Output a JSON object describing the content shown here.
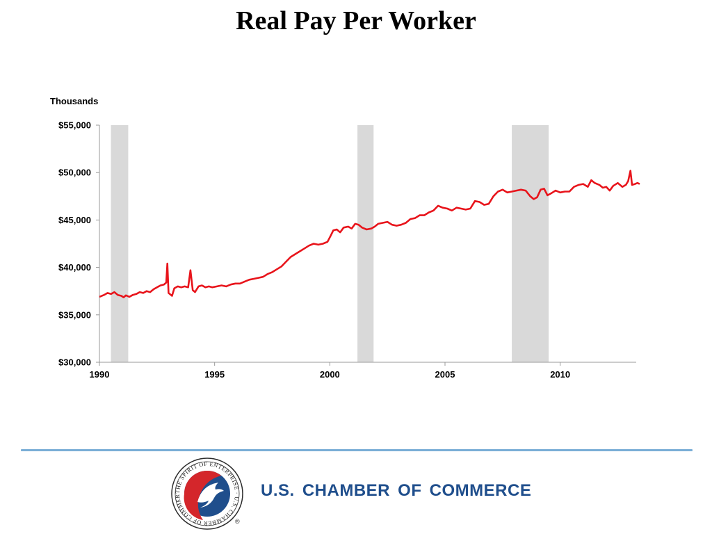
{
  "slide": {
    "title": "Real Pay Per Worker"
  },
  "footer": {
    "org_name": "U.S. CHAMBER OF COMMERCE",
    "seal_text": "THE SPIRIT OF ENTERPRISE · U.S. CHAMBER OF COMMERCE",
    "registered_mark": "®"
  },
  "colors": {
    "line": "#e8141b",
    "recession_band": "#d9d9d9",
    "footer_rule": "#7aaed6",
    "brand_blue": "#1f4e8c",
    "brand_red": "#d4262b"
  },
  "chart_data": {
    "type": "line",
    "title": "Real Pay Per Worker",
    "ylabel": "Thousands",
    "xlabel": "",
    "xlim": [
      1990,
      2013.3
    ],
    "ylim": [
      30000,
      55000
    ],
    "grid": false,
    "legend": "none",
    "x_ticks": [
      {
        "value": 1990,
        "label": "1990"
      },
      {
        "value": 1995,
        "label": "1995"
      },
      {
        "value": 2000,
        "label": "2000"
      },
      {
        "value": 2005,
        "label": "2005"
      },
      {
        "value": 2010,
        "label": "2010"
      }
    ],
    "y_ticks": [
      {
        "value": 30000,
        "label": "$30,000"
      },
      {
        "value": 35000,
        "label": "$35,000"
      },
      {
        "value": 40000,
        "label": "$40,000"
      },
      {
        "value": 45000,
        "label": "$45,000"
      },
      {
        "value": 50000,
        "label": "$50,000"
      },
      {
        "value": 55000,
        "label": "$55,000"
      }
    ],
    "shaded_periods": [
      {
        "start": 1990.5,
        "end": 1991.25
      },
      {
        "start": 2001.2,
        "end": 2001.9
      },
      {
        "start": 2007.9,
        "end": 2009.5
      }
    ],
    "series": [
      {
        "points": [
          [
            1990.0,
            36900
          ],
          [
            1990.2,
            37100
          ],
          [
            1990.35,
            37300
          ],
          [
            1990.5,
            37200
          ],
          [
            1990.65,
            37400
          ],
          [
            1990.8,
            37100
          ],
          [
            1990.95,
            37000
          ],
          [
            1991.05,
            36850
          ],
          [
            1991.15,
            37050
          ],
          [
            1991.3,
            36900
          ],
          [
            1991.45,
            37100
          ],
          [
            1991.6,
            37200
          ],
          [
            1991.75,
            37400
          ],
          [
            1991.9,
            37300
          ],
          [
            1992.05,
            37500
          ],
          [
            1992.2,
            37400
          ],
          [
            1992.35,
            37700
          ],
          [
            1992.5,
            37900
          ],
          [
            1992.65,
            38100
          ],
          [
            1992.8,
            38200
          ],
          [
            1992.9,
            38400
          ],
          [
            1992.95,
            40400
          ],
          [
            1993.0,
            37300
          ],
          [
            1993.15,
            37000
          ],
          [
            1993.25,
            37800
          ],
          [
            1993.4,
            38000
          ],
          [
            1993.55,
            37900
          ],
          [
            1993.7,
            38000
          ],
          [
            1993.85,
            37900
          ],
          [
            1993.95,
            39700
          ],
          [
            1994.05,
            37600
          ],
          [
            1994.15,
            37400
          ],
          [
            1994.3,
            38000
          ],
          [
            1994.45,
            38100
          ],
          [
            1994.6,
            37900
          ],
          [
            1994.75,
            38000
          ],
          [
            1994.9,
            37900
          ],
          [
            1995.1,
            38000
          ],
          [
            1995.3,
            38100
          ],
          [
            1995.5,
            38000
          ],
          [
            1995.7,
            38200
          ],
          [
            1995.9,
            38300
          ],
          [
            1996.1,
            38300
          ],
          [
            1996.3,
            38500
          ],
          [
            1996.5,
            38700
          ],
          [
            1996.7,
            38800
          ],
          [
            1996.9,
            38900
          ],
          [
            1997.1,
            39000
          ],
          [
            1997.3,
            39300
          ],
          [
            1997.5,
            39500
          ],
          [
            1997.7,
            39800
          ],
          [
            1997.9,
            40100
          ],
          [
            1998.1,
            40600
          ],
          [
            1998.3,
            41100
          ],
          [
            1998.5,
            41400
          ],
          [
            1998.7,
            41700
          ],
          [
            1998.9,
            42000
          ],
          [
            1999.1,
            42300
          ],
          [
            1999.3,
            42500
          ],
          [
            1999.5,
            42400
          ],
          [
            1999.7,
            42500
          ],
          [
            1999.9,
            42700
          ],
          [
            2000.05,
            43400
          ],
          [
            2000.15,
            43900
          ],
          [
            2000.3,
            44000
          ],
          [
            2000.45,
            43700
          ],
          [
            2000.6,
            44200
          ],
          [
            2000.8,
            44300
          ],
          [
            2000.95,
            44100
          ],
          [
            2001.1,
            44600
          ],
          [
            2001.25,
            44500
          ],
          [
            2001.4,
            44200
          ],
          [
            2001.6,
            44000
          ],
          [
            2001.8,
            44100
          ],
          [
            2001.95,
            44300
          ],
          [
            2002.1,
            44600
          ],
          [
            2002.3,
            44700
          ],
          [
            2002.5,
            44800
          ],
          [
            2002.7,
            44500
          ],
          [
            2002.9,
            44400
          ],
          [
            2003.1,
            44500
          ],
          [
            2003.3,
            44700
          ],
          [
            2003.5,
            45100
          ],
          [
            2003.7,
            45200
          ],
          [
            2003.9,
            45500
          ],
          [
            2004.1,
            45500
          ],
          [
            2004.3,
            45800
          ],
          [
            2004.5,
            46000
          ],
          [
            2004.7,
            46500
          ],
          [
            2004.9,
            46300
          ],
          [
            2005.1,
            46200
          ],
          [
            2005.3,
            46000
          ],
          [
            2005.5,
            46300
          ],
          [
            2005.7,
            46200
          ],
          [
            2005.9,
            46100
          ],
          [
            2006.1,
            46200
          ],
          [
            2006.3,
            47000
          ],
          [
            2006.5,
            46900
          ],
          [
            2006.7,
            46600
          ],
          [
            2006.9,
            46700
          ],
          [
            2007.1,
            47500
          ],
          [
            2007.3,
            48000
          ],
          [
            2007.5,
            48200
          ],
          [
            2007.7,
            47900
          ],
          [
            2007.9,
            48000
          ],
          [
            2008.1,
            48100
          ],
          [
            2008.3,
            48200
          ],
          [
            2008.5,
            48100
          ],
          [
            2008.7,
            47500
          ],
          [
            2008.85,
            47200
          ],
          [
            2009.0,
            47400
          ],
          [
            2009.15,
            48200
          ],
          [
            2009.3,
            48300
          ],
          [
            2009.45,
            47600
          ],
          [
            2009.6,
            47800
          ],
          [
            2009.8,
            48100
          ],
          [
            2010.0,
            47900
          ],
          [
            2010.2,
            48000
          ],
          [
            2010.4,
            48000
          ],
          [
            2010.6,
            48500
          ],
          [
            2010.8,
            48700
          ],
          [
            2011.0,
            48800
          ],
          [
            2011.2,
            48500
          ],
          [
            2011.35,
            49200
          ],
          [
            2011.5,
            48900
          ],
          [
            2011.7,
            48700
          ],
          [
            2011.85,
            48400
          ],
          [
            2012.0,
            48500
          ],
          [
            2012.15,
            48100
          ],
          [
            2012.3,
            48600
          ],
          [
            2012.5,
            48900
          ],
          [
            2012.7,
            48500
          ],
          [
            2012.85,
            48700
          ],
          [
            2012.95,
            49100
          ],
          [
            2013.05,
            50200
          ],
          [
            2013.12,
            48700
          ],
          [
            2013.25,
            48800
          ],
          [
            2013.35,
            48900
          ],
          [
            2013.45,
            48800
          ]
        ]
      }
    ]
  }
}
